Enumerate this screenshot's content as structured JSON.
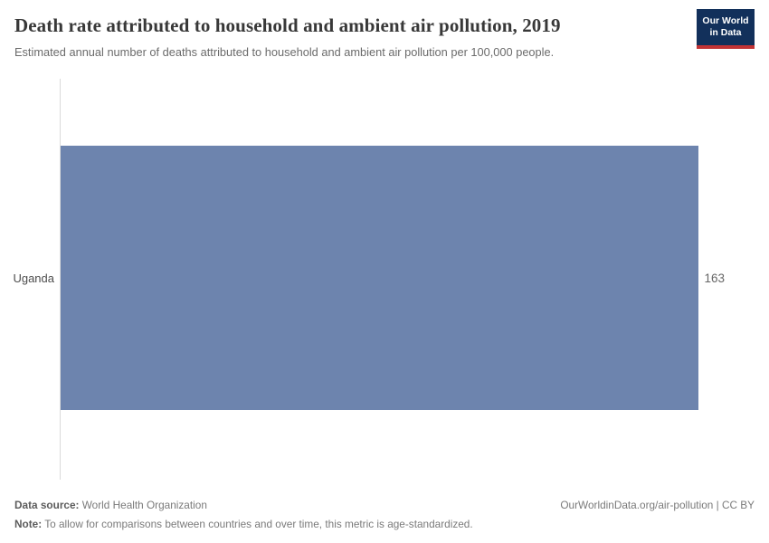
{
  "header": {
    "title": "Death rate attributed to household and ambient air pollution, 2019",
    "subtitle": "Estimated annual number of deaths attributed to household and ambient air pollution per 100,000 people.",
    "logo": {
      "line1": "Our World",
      "line2": "in Data"
    }
  },
  "chart_data": {
    "type": "bar",
    "orientation": "horizontal",
    "categories": [
      "Uganda"
    ],
    "values": [
      163
    ],
    "value_labels": [
      "163"
    ],
    "title": "Death rate attributed to household and ambient air pollution, 2019",
    "xlabel": "",
    "ylabel": "",
    "xlim": [
      0,
      163
    ],
    "grid": false,
    "legend": "none",
    "bar_color": "#6d84ae"
  },
  "footer": {
    "data_source_label": "Data source:",
    "data_source_text": " World Health Organization",
    "note_label": "Note:",
    "note_text": " To allow for comparisons between countries and over time, this metric is age-standardized.",
    "attribution": "OurWorldinData.org/air-pollution | CC BY"
  },
  "colors": {
    "bar": "#6d84ae",
    "logo_navy": "#12305b",
    "logo_red": "#c23335",
    "axis_line": "#dadada",
    "title_text": "#383838",
    "muted_text": "#6b6b6b"
  }
}
